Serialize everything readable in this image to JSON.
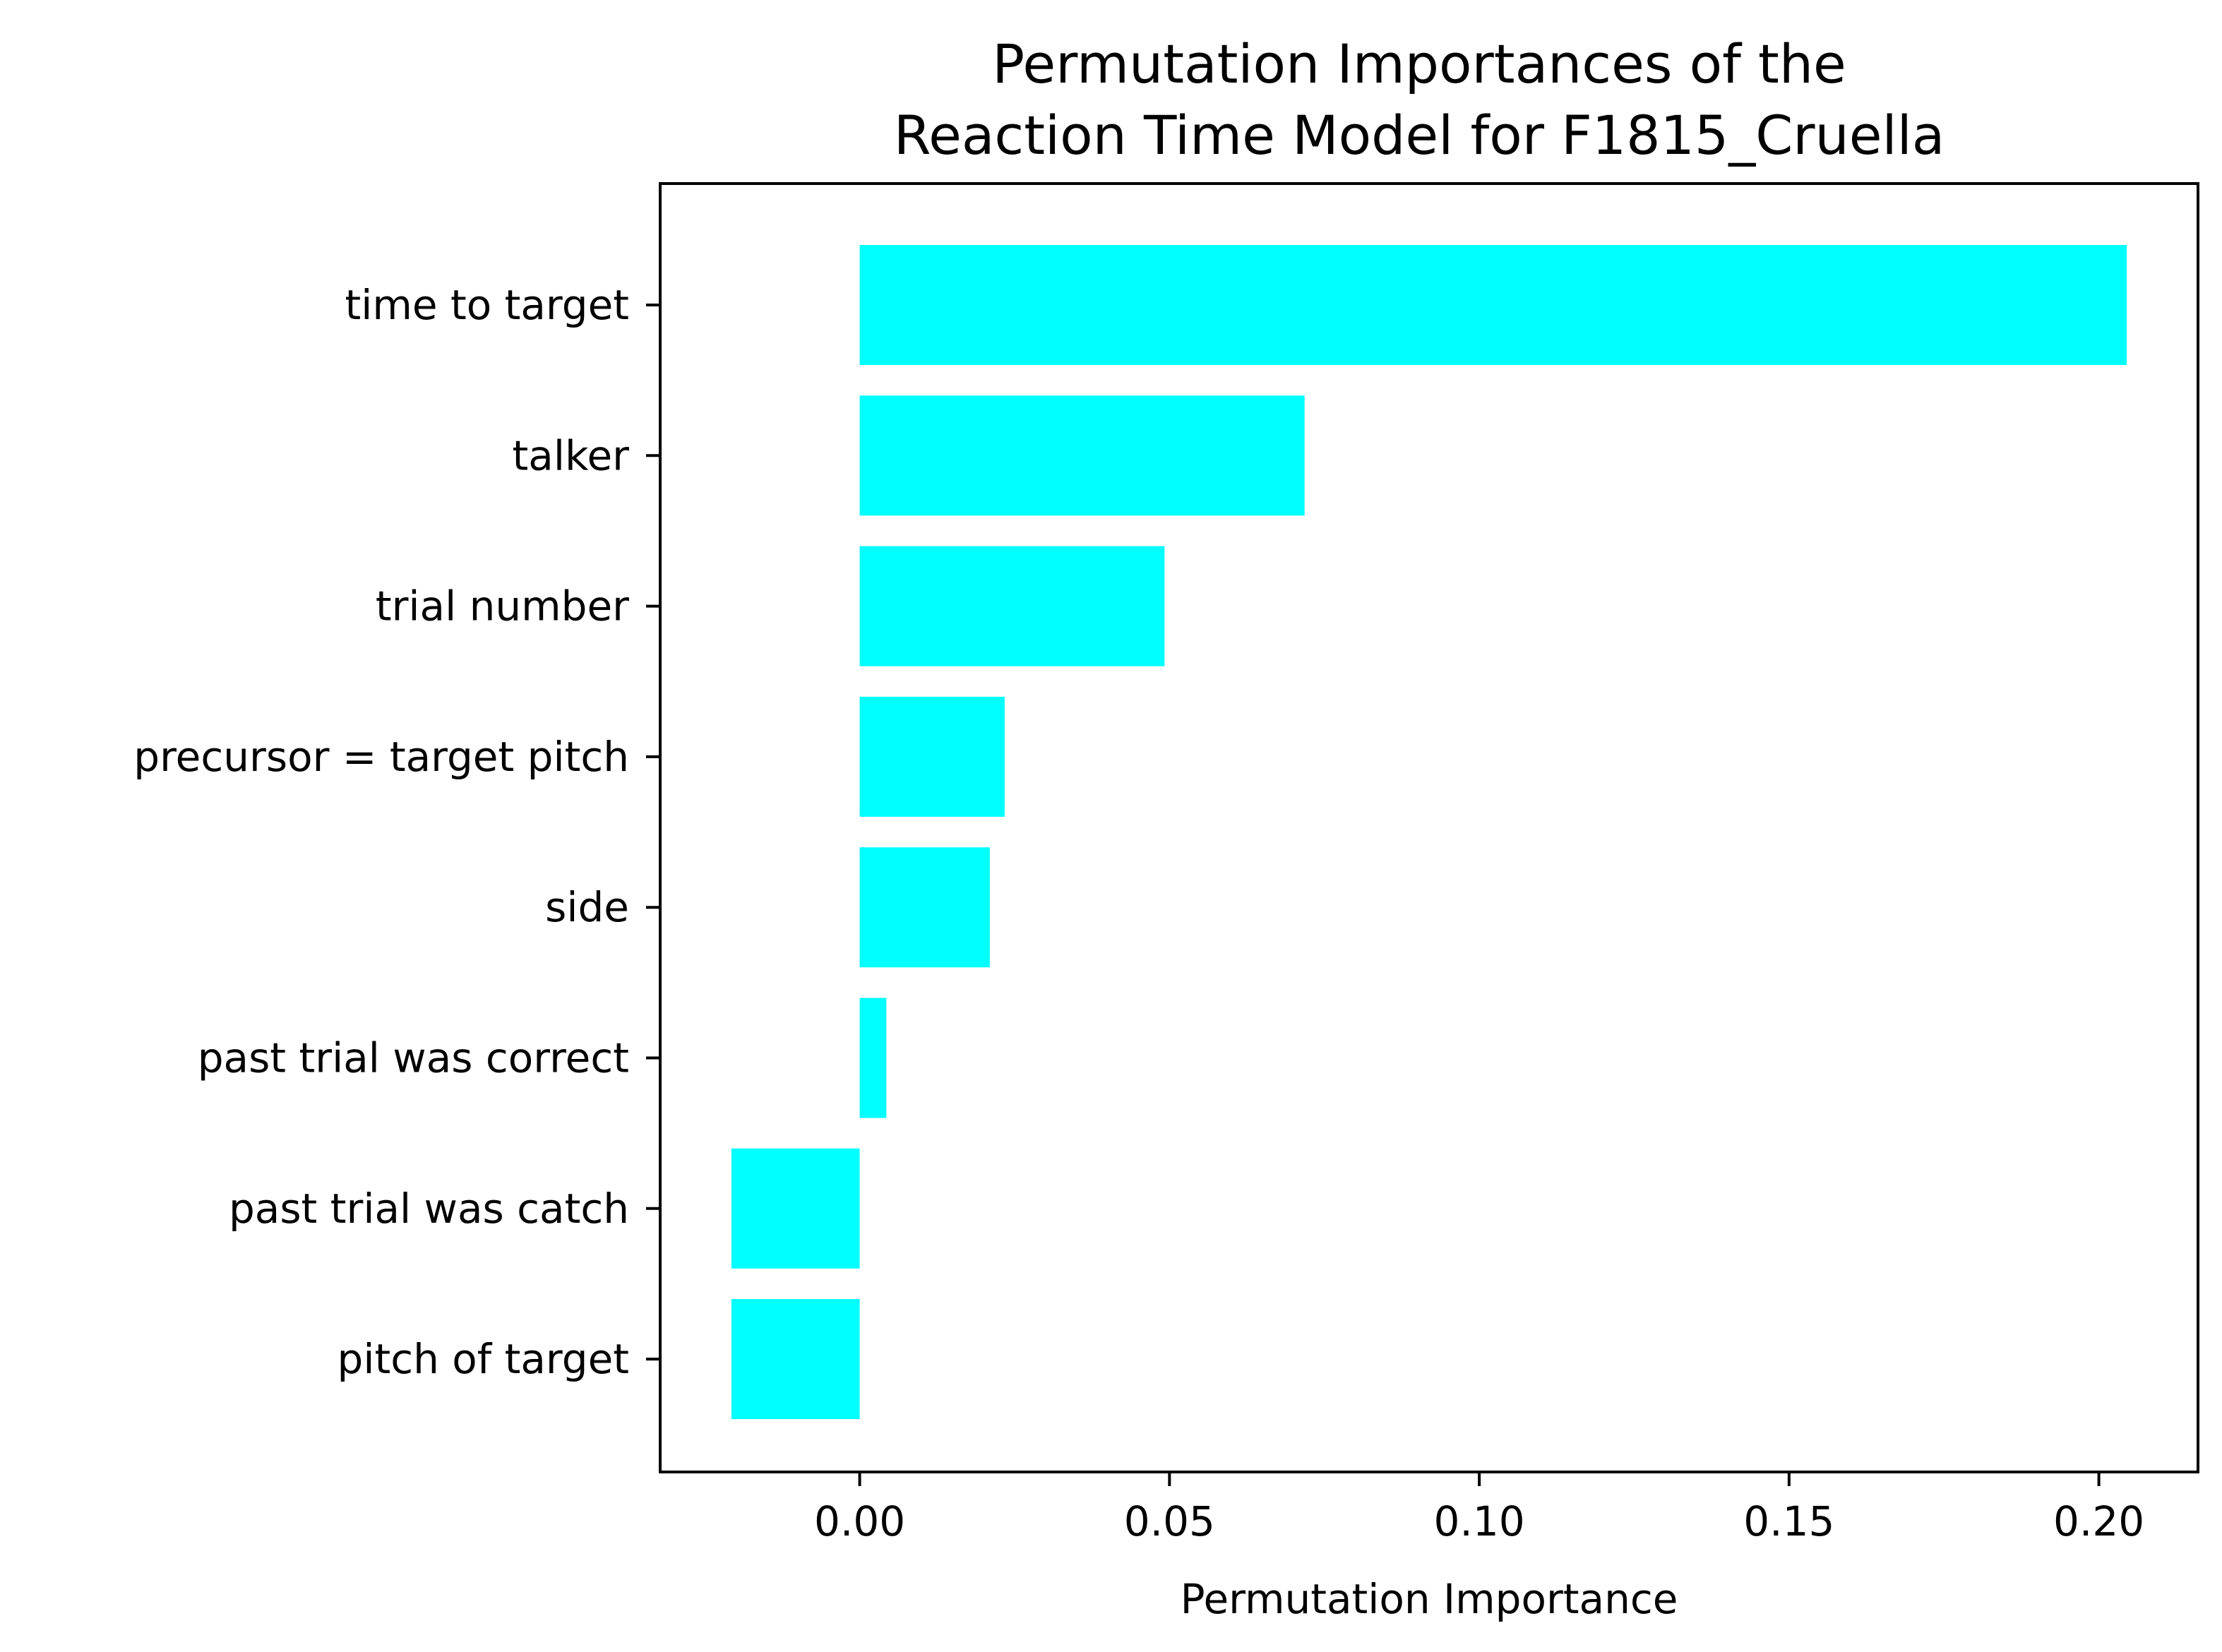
{
  "chart_data": {
    "type": "bar",
    "orientation": "horizontal",
    "title": [
      "Permutation Importances of the",
      "Reaction Time Model for F1815_Cruella"
    ],
    "xlabel": "Permutation Importance",
    "ylabel": "",
    "categories": [
      "time to target",
      "talker",
      "trial number",
      "precursor = target pitch",
      "side",
      "past trial was correct",
      "past trial was catch",
      "pitch of target"
    ],
    "values": [
      0.2045,
      0.0718,
      0.0492,
      0.0234,
      0.021,
      0.0043,
      -0.0207,
      -0.0207
    ],
    "xlim": [
      -0.0322,
      0.216
    ],
    "xticks": [
      0.0,
      0.05,
      0.1,
      0.15,
      0.2
    ],
    "xtick_labels": [
      "0.00",
      "0.05",
      "0.10",
      "0.15",
      "0.20"
    ],
    "bar_color": "#00ffff",
    "grid": false,
    "legend": "none"
  }
}
